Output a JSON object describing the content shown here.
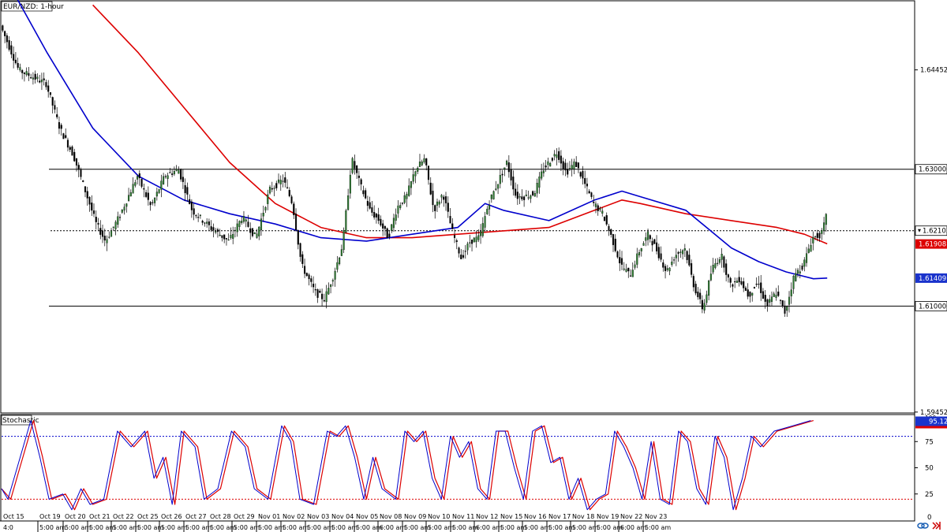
{
  "window": {
    "title": "EUR/NZD: 1-hour",
    "stochastic_label": "Stochastic"
  },
  "colors": {
    "background": "#ffffff",
    "frame": "#000000",
    "bull_candle": "#2e7d32",
    "bear_candle": "#000000",
    "ma_fast": "#0000cc",
    "ma_slow": "#dd0000",
    "stoch_k": "#0000cc",
    "stoch_d": "#dd0000",
    "level_high": "#0000cc",
    "level_low": "#dd0000",
    "price_badge": "#000000",
    "slow_badge": "#dd0000",
    "fast_badge": "#1a33cc"
  },
  "chart_data": [
    {
      "type": "candlestick",
      "title": "EUR/NZD: 1-hour",
      "ylim": [
        1.5945,
        1.6545
      ],
      "y_ticks": [
        1.64452,
        1.59452
      ],
      "x_tick_labels": [
        "Oct 15",
        "Oct 19",
        "Oct 20",
        "Oct 21",
        "Oct 22",
        "Oct 25",
        "Oct 26",
        "Oct 27",
        "Oct 28",
        "Oct 29",
        "Nov 01",
        "Nov 02",
        "Nov 03",
        "Nov 04",
        "Nov 05",
        "Nov 08",
        "Nov 09",
        "Nov 10",
        "Nov 11",
        "Nov 12",
        "Nov 15",
        "Nov 16",
        "Nov 17",
        "Nov 18",
        "Nov 19",
        "Nov 22",
        "Nov 23"
      ],
      "x_time_labels": [
        "4:0",
        "5:00 am",
        "5:00 am",
        "5:00 am",
        "5:00 am",
        "5:00 am",
        "5:00 am",
        "5:00 am",
        "5:00 am",
        "5:00 am",
        "5:00 am",
        "5:00 am",
        "5:00 am",
        "5:00 am",
        "5:00 am",
        "6:00 am",
        "5:00 am",
        "5:00 am",
        "5:00 am",
        "6:00 am",
        "5:00 am",
        "5:00 am",
        "5:00 am",
        "5:00 am",
        "5:00 am",
        "6:00 am",
        "5:00 am"
      ],
      "price_path": [
        [
          0,
          1.651
        ],
        [
          0.02,
          1.6445
        ],
        [
          0.05,
          1.6425
        ],
        [
          0.065,
          1.636
        ],
        [
          0.08,
          1.632
        ],
        [
          0.095,
          1.626
        ],
        [
          0.105,
          1.622
        ],
        [
          0.115,
          1.6195
        ],
        [
          0.13,
          1.623
        ],
        [
          0.15,
          1.629
        ],
        [
          0.165,
          1.6245
        ],
        [
          0.18,
          1.629
        ],
        [
          0.195,
          1.63
        ],
        [
          0.21,
          1.624
        ],
        [
          0.23,
          1.6215
        ],
        [
          0.25,
          1.6195
        ],
        [
          0.265,
          1.623
        ],
        [
          0.28,
          1.62
        ],
        [
          0.295,
          1.627
        ],
        [
          0.31,
          1.6285
        ],
        [
          0.32,
          1.625
        ],
        [
          0.33,
          1.616
        ],
        [
          0.345,
          1.612
        ],
        [
          0.355,
          1.611
        ],
        [
          0.365,
          1.6145
        ],
        [
          0.375,
          1.619
        ],
        [
          0.385,
          1.6315
        ],
        [
          0.395,
          1.6275
        ],
        [
          0.405,
          1.624
        ],
        [
          0.415,
          1.6225
        ],
        [
          0.425,
          1.62
        ],
        [
          0.435,
          1.6245
        ],
        [
          0.445,
          1.626
        ],
        [
          0.455,
          1.63
        ],
        [
          0.465,
          1.6315
        ],
        [
          0.475,
          1.624
        ],
        [
          0.485,
          1.6265
        ],
        [
          0.495,
          1.621
        ],
        [
          0.505,
          1.617
        ],
        [
          0.515,
          1.6195
        ],
        [
          0.525,
          1.62
        ],
        [
          0.535,
          1.625
        ],
        [
          0.545,
          1.628
        ],
        [
          0.555,
          1.631
        ],
        [
          0.565,
          1.626
        ],
        [
          0.575,
          1.626
        ],
        [
          0.585,
          1.6265
        ],
        [
          0.595,
          1.63
        ],
        [
          0.61,
          1.6325
        ],
        [
          0.62,
          1.6295
        ],
        [
          0.63,
          1.631
        ],
        [
          0.64,
          1.628
        ],
        [
          0.65,
          1.625
        ],
        [
          0.66,
          1.6235
        ],
        [
          0.67,
          1.62
        ],
        [
          0.68,
          1.616
        ],
        [
          0.69,
          1.6145
        ],
        [
          0.7,
          1.618
        ],
        [
          0.71,
          1.6205
        ],
        [
          0.72,
          1.618
        ],
        [
          0.73,
          1.615
        ],
        [
          0.74,
          1.6175
        ],
        [
          0.75,
          1.6185
        ],
        [
          0.76,
          1.613
        ],
        [
          0.77,
          1.6095
        ],
        [
          0.78,
          1.6155
        ],
        [
          0.79,
          1.6175
        ],
        [
          0.8,
          1.613
        ],
        [
          0.81,
          1.614
        ],
        [
          0.82,
          1.6115
        ],
        [
          0.83,
          1.6135
        ],
        [
          0.84,
          1.61
        ],
        [
          0.85,
          1.612
        ],
        [
          0.86,
          1.609
        ],
        [
          0.87,
          1.6145
        ],
        [
          0.88,
          1.616
        ],
        [
          0.89,
          1.62
        ],
        [
          0.9,
          1.6205
        ],
        [
          0.905,
          1.623
        ]
      ],
      "ma_fast_path": [
        [
          0,
          1.659
        ],
        [
          0.05,
          1.647
        ],
        [
          0.1,
          1.636
        ],
        [
          0.15,
          1.629
        ],
        [
          0.2,
          1.6255
        ],
        [
          0.25,
          1.6235
        ],
        [
          0.3,
          1.622
        ],
        [
          0.35,
          1.62
        ],
        [
          0.4,
          1.6195
        ],
        [
          0.45,
          1.6205
        ],
        [
          0.5,
          1.6215
        ],
        [
          0.53,
          1.625
        ],
        [
          0.55,
          1.624
        ],
        [
          0.6,
          1.6225
        ],
        [
          0.65,
          1.6255
        ],
        [
          0.68,
          1.6268
        ],
        [
          0.7,
          1.626
        ],
        [
          0.75,
          1.624
        ],
        [
          0.8,
          1.6185
        ],
        [
          0.83,
          1.6165
        ],
        [
          0.86,
          1.615
        ],
        [
          0.89,
          1.614
        ],
        [
          0.905,
          1.6141
        ]
      ],
      "ma_slow_path": [
        [
          0.1,
          1.654
        ],
        [
          0.15,
          1.647
        ],
        [
          0.2,
          1.639
        ],
        [
          0.25,
          1.631
        ],
        [
          0.3,
          1.625
        ],
        [
          0.35,
          1.6215
        ],
        [
          0.4,
          1.62
        ],
        [
          0.45,
          1.62
        ],
        [
          0.5,
          1.6205
        ],
        [
          0.55,
          1.621
        ],
        [
          0.6,
          1.6215
        ],
        [
          0.65,
          1.624
        ],
        [
          0.68,
          1.6255
        ],
        [
          0.7,
          1.625
        ],
        [
          0.75,
          1.6235
        ],
        [
          0.8,
          1.6225
        ],
        [
          0.85,
          1.6215
        ],
        [
          0.88,
          1.6205
        ],
        [
          0.905,
          1.6191
        ]
      ],
      "horizontal_levels": [
        {
          "label": "1.63000",
          "value": 1.63,
          "style": "solid"
        },
        {
          "label": "1.62102",
          "value": 1.62102,
          "style": "dotted"
        },
        {
          "label": "1.61000",
          "value": 1.61,
          "style": "solid"
        }
      ],
      "price_labels": {
        "current": "1.62102",
        "slow_ma": "1.61908",
        "fast_ma": "1.61409"
      }
    },
    {
      "type": "line",
      "title": "Stochastic",
      "ylim": [
        0,
        100
      ],
      "y_ticks": [
        100,
        75,
        50,
        25,
        0
      ],
      "y_tick_labels": [
        "100",
        "75",
        "50",
        "25",
        "0"
      ],
      "levels": [
        80,
        20
      ],
      "current_value": "95.12",
      "k_path": [
        [
          0,
          30
        ],
        [
          0.01,
          20
        ],
        [
          0.02,
          50
        ],
        [
          0.035,
          95
        ],
        [
          0.045,
          60
        ],
        [
          0.055,
          20
        ],
        [
          0.07,
          25
        ],
        [
          0.08,
          10
        ],
        [
          0.09,
          30
        ],
        [
          0.1,
          15
        ],
        [
          0.115,
          20
        ],
        [
          0.13,
          85
        ],
        [
          0.145,
          70
        ],
        [
          0.16,
          85
        ],
        [
          0.17,
          40
        ],
        [
          0.18,
          60
        ],
        [
          0.19,
          15
        ],
        [
          0.2,
          85
        ],
        [
          0.215,
          70
        ],
        [
          0.225,
          20
        ],
        [
          0.24,
          30
        ],
        [
          0.255,
          85
        ],
        [
          0.27,
          70
        ],
        [
          0.28,
          30
        ],
        [
          0.295,
          20
        ],
        [
          0.31,
          90
        ],
        [
          0.32,
          75
        ],
        [
          0.33,
          20
        ],
        [
          0.345,
          15
        ],
        [
          0.36,
          85
        ],
        [
          0.37,
          80
        ],
        [
          0.38,
          90
        ],
        [
          0.39,
          60
        ],
        [
          0.4,
          20
        ],
        [
          0.41,
          60
        ],
        [
          0.42,
          30
        ],
        [
          0.435,
          20
        ],
        [
          0.445,
          85
        ],
        [
          0.455,
          75
        ],
        [
          0.465,
          85
        ],
        [
          0.475,
          40
        ],
        [
          0.485,
          20
        ],
        [
          0.495,
          80
        ],
        [
          0.505,
          60
        ],
        [
          0.515,
          75
        ],
        [
          0.525,
          30
        ],
        [
          0.535,
          20
        ],
        [
          0.545,
          85
        ],
        [
          0.555,
          85
        ],
        [
          0.565,
          50
        ],
        [
          0.575,
          20
        ],
        [
          0.585,
          85
        ],
        [
          0.595,
          90
        ],
        [
          0.605,
          55
        ],
        [
          0.615,
          60
        ],
        [
          0.625,
          20
        ],
        [
          0.635,
          40
        ],
        [
          0.645,
          10
        ],
        [
          0.655,
          20
        ],
        [
          0.665,
          25
        ],
        [
          0.675,
          85
        ],
        [
          0.685,
          70
        ],
        [
          0.695,
          50
        ],
        [
          0.705,
          20
        ],
        [
          0.715,
          75
        ],
        [
          0.725,
          20
        ],
        [
          0.735,
          15
        ],
        [
          0.745,
          85
        ],
        [
          0.755,
          75
        ],
        [
          0.765,
          30
        ],
        [
          0.775,
          15
        ],
        [
          0.785,
          80
        ],
        [
          0.795,
          60
        ],
        [
          0.805,
          10
        ],
        [
          0.815,
          40
        ],
        [
          0.825,
          80
        ],
        [
          0.835,
          70
        ],
        [
          0.85,
          85
        ],
        [
          0.87,
          90
        ],
        [
          0.89,
          95
        ]
      ]
    }
  ]
}
